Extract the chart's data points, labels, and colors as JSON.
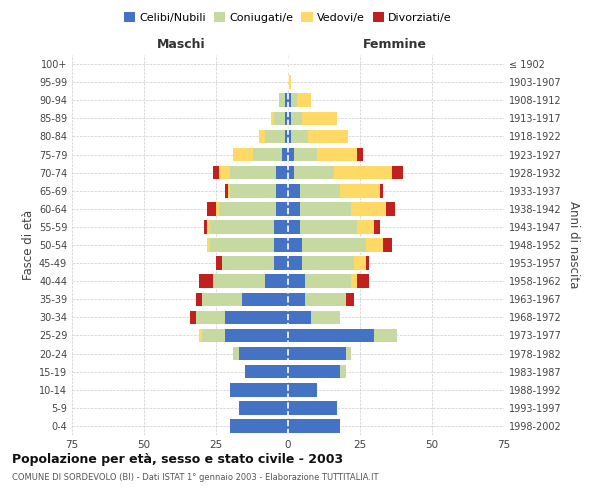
{
  "age_groups": [
    "0-4",
    "5-9",
    "10-14",
    "15-19",
    "20-24",
    "25-29",
    "30-34",
    "35-39",
    "40-44",
    "45-49",
    "50-54",
    "55-59",
    "60-64",
    "65-69",
    "70-74",
    "75-79",
    "80-84",
    "85-89",
    "90-94",
    "95-99",
    "100+"
  ],
  "birth_years": [
    "1998-2002",
    "1993-1997",
    "1988-1992",
    "1983-1987",
    "1978-1982",
    "1973-1977",
    "1968-1972",
    "1963-1967",
    "1958-1962",
    "1953-1957",
    "1948-1952",
    "1943-1947",
    "1938-1942",
    "1933-1937",
    "1928-1932",
    "1923-1927",
    "1918-1922",
    "1913-1917",
    "1908-1912",
    "1903-1907",
    "≤ 1902"
  ],
  "male": {
    "celibi": [
      20,
      17,
      20,
      15,
      17,
      22,
      22,
      16,
      8,
      5,
      5,
      5,
      4,
      4,
      4,
      2,
      1,
      1,
      1,
      0,
      0
    ],
    "coniugati": [
      0,
      0,
      0,
      0,
      2,
      8,
      10,
      14,
      18,
      18,
      22,
      22,
      20,
      16,
      16,
      10,
      7,
      4,
      2,
      0,
      0
    ],
    "vedovi": [
      0,
      0,
      0,
      0,
      0,
      1,
      0,
      0,
      0,
      0,
      1,
      1,
      1,
      1,
      4,
      7,
      2,
      1,
      0,
      0,
      0
    ],
    "divorziati": [
      0,
      0,
      0,
      0,
      0,
      0,
      2,
      2,
      5,
      2,
      0,
      1,
      3,
      1,
      2,
      0,
      0,
      0,
      0,
      0,
      0
    ]
  },
  "female": {
    "nubili": [
      18,
      17,
      10,
      18,
      20,
      30,
      8,
      6,
      6,
      5,
      5,
      4,
      4,
      4,
      2,
      2,
      1,
      1,
      1,
      0,
      0
    ],
    "coniugate": [
      0,
      0,
      0,
      2,
      2,
      8,
      10,
      14,
      16,
      18,
      22,
      20,
      18,
      14,
      14,
      8,
      6,
      4,
      2,
      0,
      0
    ],
    "vedove": [
      0,
      0,
      0,
      0,
      0,
      0,
      0,
      0,
      2,
      4,
      6,
      6,
      12,
      14,
      20,
      14,
      14,
      12,
      5,
      1,
      0
    ],
    "divorziate": [
      0,
      0,
      0,
      0,
      0,
      0,
      0,
      3,
      4,
      1,
      3,
      2,
      3,
      1,
      4,
      2,
      0,
      0,
      0,
      0,
      0
    ]
  },
  "colors": {
    "celibi_nubili": "#4472C4",
    "coniugati": "#C5D9A0",
    "vedovi": "#FFD966",
    "divorziati": "#C0211F"
  },
  "title": "Popolazione per età, sesso e stato civile - 2003",
  "subtitle": "COMUNE DI SORDEVOLO (BI) - Dati ISTAT 1° gennaio 2003 - Elaborazione TUTTITALIA.IT",
  "xlabel_left": "Maschi",
  "xlabel_right": "Femmine",
  "ylabel_left": "Fasce di età",
  "ylabel_right": "Anni di nascita",
  "xlim": 75,
  "bg_color": "#ffffff",
  "grid_color": "#cccccc"
}
